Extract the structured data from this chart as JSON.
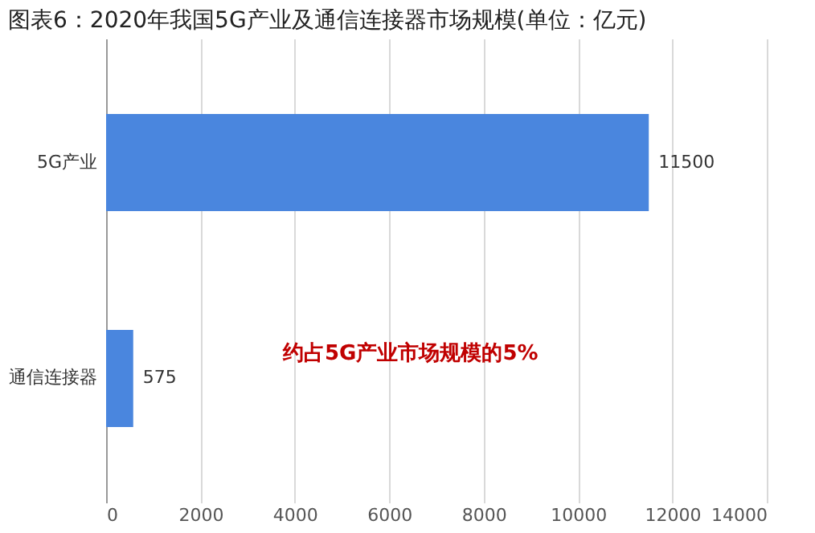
{
  "chart_data": {
    "type": "bar",
    "orientation": "horizontal",
    "title": "图表6：2020年我国5G产业及通信连接器市场规模(单位：亿元)",
    "categories": [
      "5G产业",
      "通信连接器"
    ],
    "values": [
      11500,
      575
    ],
    "color": "#4a86de",
    "xlim": [
      0,
      14000
    ],
    "xticks": [
      0,
      2000,
      4000,
      6000,
      8000,
      10000,
      12000,
      14000
    ],
    "grid": "x",
    "data_labels": true,
    "annotations": [
      "约占5G产业市场规模的5%"
    ]
  }
}
